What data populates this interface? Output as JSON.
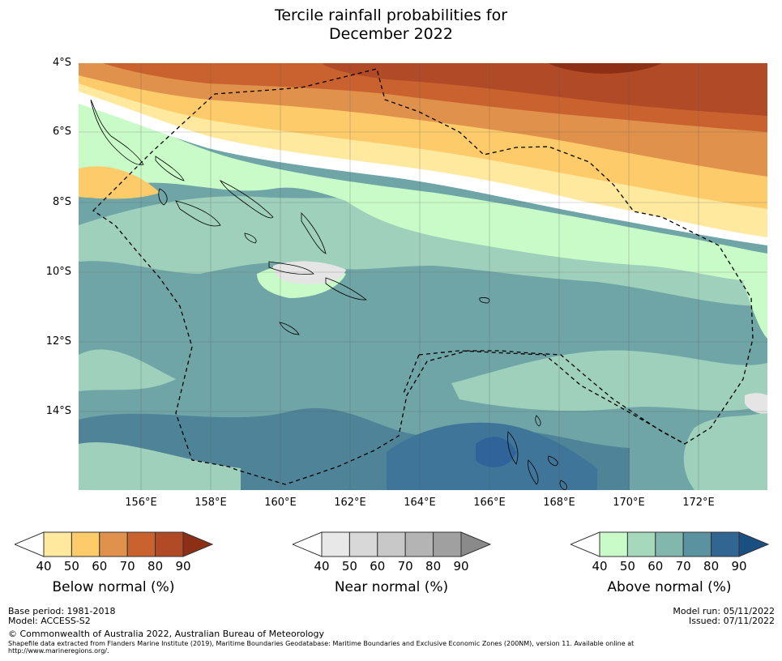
{
  "title_line1": "Tercile rainfall probabilities for",
  "title_line2": "December 2022",
  "lat_labels": [
    "4°S",
    "6°S",
    "8°S",
    "10°S",
    "12°S",
    "14°S"
  ],
  "lon_labels": [
    "156°E",
    "158°E",
    "160°E",
    "162°E",
    "164°E",
    "166°E",
    "168°E",
    "170°E",
    "172°E"
  ],
  "colorbars": [
    {
      "title": "Below normal (%)",
      "ticks": [
        "40",
        "50",
        "60",
        "70",
        "80",
        "90"
      ],
      "colors": [
        "#ffffff",
        "#ffe99e",
        "#fecb6a",
        "#e0924c",
        "#c9622f",
        "#b04a27",
        "#8c2f14"
      ]
    },
    {
      "title": "Near normal (%)",
      "ticks": [
        "40",
        "50",
        "60",
        "70",
        "80",
        "90"
      ],
      "colors": [
        "#ffffff",
        "#e8e8e8",
        "#d8d8d8",
        "#c8c8c8",
        "#b4b4b4",
        "#a0a0a0",
        "#8a8a8a"
      ]
    },
    {
      "title": "Above normal (%)",
      "ticks": [
        "40",
        "50",
        "60",
        "70",
        "80",
        "90"
      ],
      "colors": [
        "#ffffff",
        "#c9fbc8",
        "#a6d9bb",
        "#82b7ad",
        "#5a939f",
        "#316592",
        "#1a4f82"
      ]
    }
  ],
  "footer": {
    "base_period": "Base period: 1981-2018",
    "model": "Model: ACCESS-S2",
    "model_run": "Model run: 05/11/2022",
    "issued": "Issued: 07/11/2022",
    "copyright": "© Commonwealth of Australia 2022, Australian Bureau of Meteorology",
    "shapefile_line1": "Shapefile data extracted from Flanders Marine Institute (2019), Maritime Boundaries Geodatabase: Maritime Boundaries and Exclusive Economic Zones (200NM), version 11. Available online at",
    "shapefile_line2": "http://www.marineregions.org/."
  }
}
